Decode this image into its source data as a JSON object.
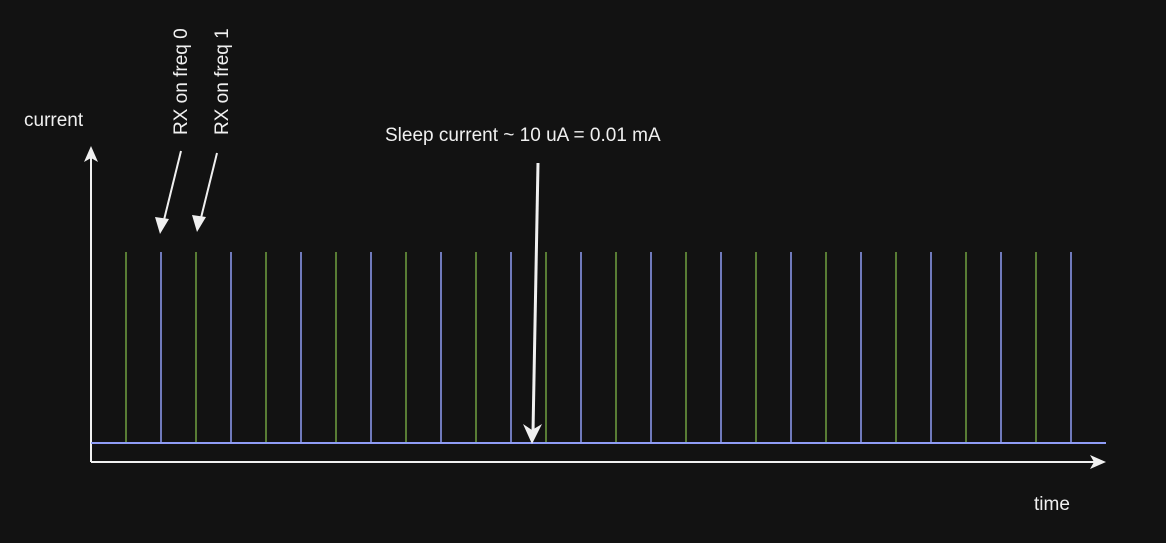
{
  "labels": {
    "y_axis": "current",
    "x_axis": "time",
    "rx_freq0": "RX on freq 0",
    "rx_freq1": "RX on freq 1",
    "sleep": "Sleep current ~ 10 uA = 0.01 mA"
  },
  "colors": {
    "background": "#121212",
    "axis": "#f0f0f0",
    "freq0_pulse": "#6fa040",
    "freq1_pulse": "#8f9cf5",
    "baseline": "#8f9cf5"
  },
  "pulses": {
    "count": 28,
    "pattern": [
      "freq 0",
      "freq 1"
    ]
  }
}
